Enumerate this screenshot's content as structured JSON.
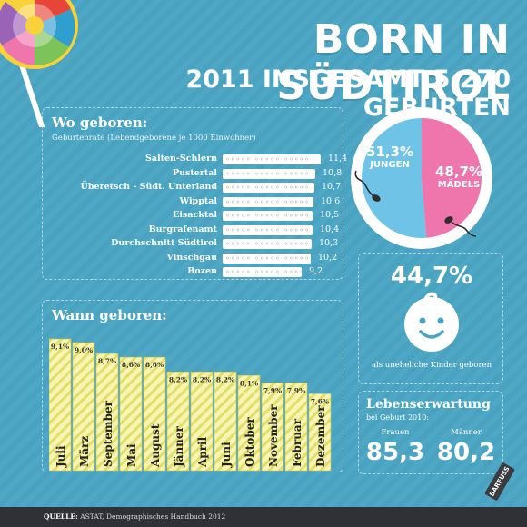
{
  "header": {
    "title": "BORN IN SÜDTIROL",
    "subtitle": "2011 INSGESAMT 5.270 GEBURTEN"
  },
  "births_panel": {
    "title": "Wo geboren:",
    "subtitle": "Geburtenrate (Lebendgeborene je 1000 Einwohner)"
  },
  "gender": {
    "boys_pct": "51,3%",
    "boys_label": "JUNGEN",
    "girls_pct": "48,7%",
    "girls_label": "MÄDELS",
    "colors": {
      "boys": "#6fc3e6",
      "girls": "#ee76ac",
      "ring": "#ffffff"
    }
  },
  "illegitimate": {
    "pct": "44,7%",
    "text": "als uneheliche Kinder geboren"
  },
  "months_panel": {
    "title": "Wann geboren:"
  },
  "life": {
    "title": "Lebenserwartung",
    "subtitle": "bei Geburt 2010:",
    "women_label": "Frauen",
    "women_value": "85,3",
    "men_label": "Männer",
    "men_value": "80,2"
  },
  "footer": {
    "source_label": "QUELLE:",
    "source_text": "ASTAT, Demographisches Handbuch 2012",
    "logo": "BARFUSS"
  },
  "chart_data": [
    {
      "type": "bar",
      "orientation": "horizontal",
      "categories": [
        "Salten-Schlern",
        "Pustertal",
        "Überetsch - Südt. Unterland",
        "Wipptal",
        "Eisacktal",
        "Burgrafenamt",
        "Durchschnitt Südtirol",
        "Vinschgau",
        "Bozen"
      ],
      "values": [
        11.4,
        10.8,
        10.7,
        10.6,
        10.5,
        10.4,
        10.3,
        10.2,
        9.2
      ],
      "value_labels": [
        "11,4",
        "10,8",
        "10,7",
        "10,6",
        "10,5",
        "10,4",
        "10,3",
        "10,2",
        "9,2"
      ],
      "ylabel": "Geburtenrate (Lebendgeborene je 1000 Einwohner)"
    },
    {
      "type": "bar",
      "categories": [
        "Juli",
        "März",
        "September",
        "Mai",
        "August",
        "Jänner",
        "April",
        "Juni",
        "Oktober",
        "November",
        "Februar",
        "Dezember"
      ],
      "values": [
        9.1,
        9.0,
        8.7,
        8.6,
        8.6,
        8.2,
        8.2,
        8.2,
        8.1,
        7.9,
        7.9,
        7.6
      ],
      "value_labels": [
        "9,1%",
        "9,0%",
        "8,7%",
        "8,6%",
        "8,6%",
        "8,2%",
        "8,2%",
        "8,2%",
        "8,1%",
        "7,9%",
        "7,9%",
        "7,6%"
      ],
      "bar_color": "#f7f5b2",
      "stripe_color": "#e3dd6a"
    }
  ]
}
